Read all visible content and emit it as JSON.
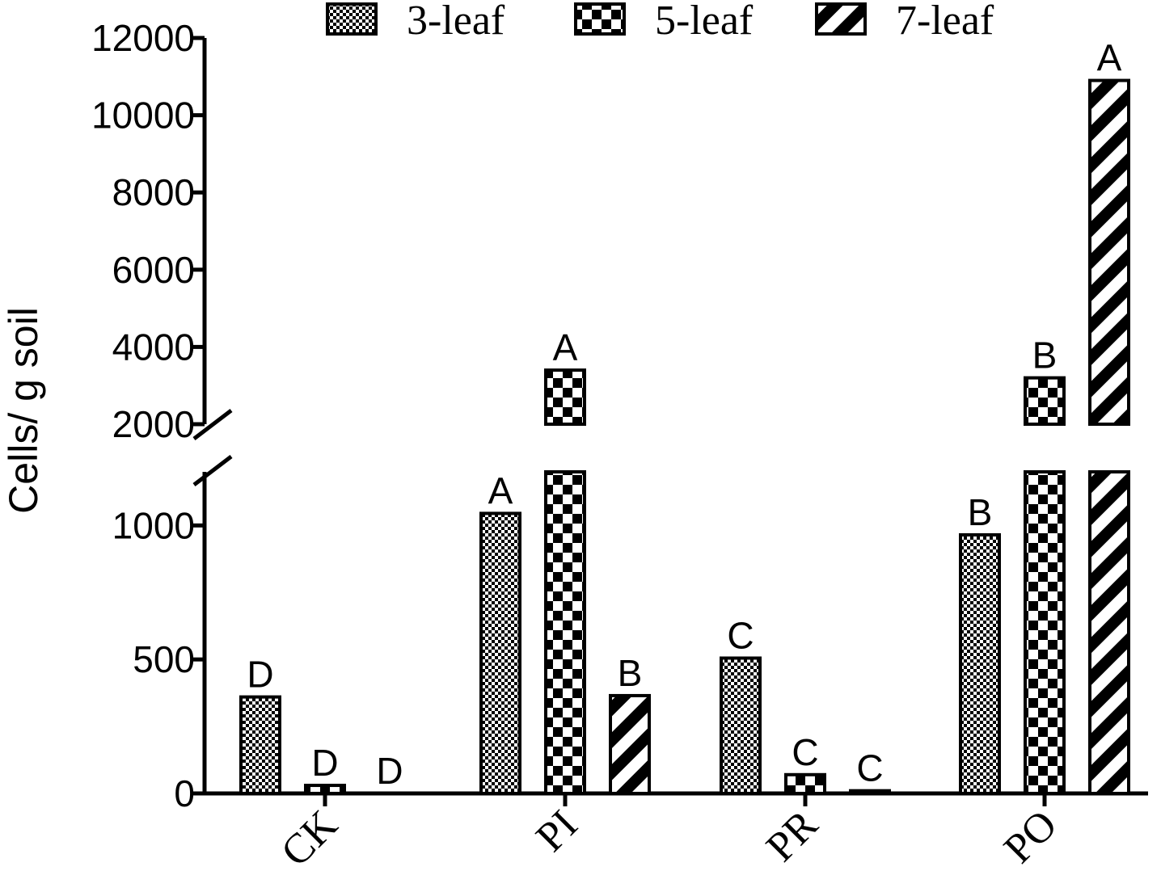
{
  "chart_data": {
    "type": "bar",
    "ylabel": "Cells/ g soil",
    "xlabel": "",
    "categories": [
      "CK",
      "PI",
      "PR",
      "PO"
    ],
    "series": [
      {
        "name": "3-leaf",
        "pattern": "fine-checker",
        "values": [
          360,
          1045,
          505,
          965
        ],
        "letters": [
          "D",
          "A",
          "C",
          "B"
        ]
      },
      {
        "name": "5-leaf",
        "pattern": "coarse-checker",
        "values": [
          30,
          3400,
          70,
          3200
        ],
        "letters": [
          "D",
          "A",
          "C",
          "B"
        ]
      },
      {
        "name": "7-leaf",
        "pattern": "diagonal-stripes",
        "values": [
          0,
          365,
          10,
          10900
        ],
        "letters": [
          "D",
          "B",
          "C",
          "A"
        ]
      }
    ],
    "broken_axis": {
      "lower_range": [
        0,
        1200
      ],
      "upper_range": [
        2000,
        12000
      ],
      "lower_ticks": [
        "0",
        "500",
        "1000"
      ],
      "upper_ticks": [
        "2000",
        "4000",
        "6000",
        "8000",
        "10000",
        "12000"
      ]
    },
    "legend_placement": "top",
    "grid": false
  },
  "colors": {
    "bar_fill": "#000000",
    "bar_background": "#ffffff",
    "axis": "#000000"
  }
}
